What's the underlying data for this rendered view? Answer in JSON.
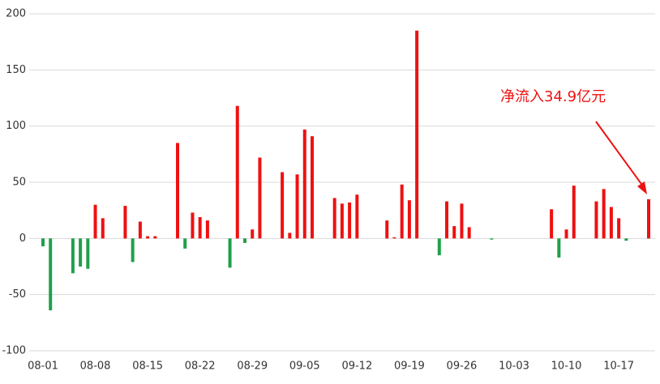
{
  "chart_data": {
    "type": "bar",
    "categories": [
      "08-01",
      null,
      null,
      null,
      null,
      null,
      null,
      "08-08",
      null,
      null,
      null,
      null,
      null,
      null,
      "08-15",
      null,
      null,
      null,
      null,
      null,
      null,
      "08-22",
      null,
      null,
      null,
      null,
      null,
      null,
      "08-29",
      null,
      null,
      null,
      null,
      null,
      null,
      "09-05",
      null,
      null,
      null,
      null,
      null,
      null,
      "09-12",
      null,
      null,
      null,
      null,
      null,
      null,
      "09-19",
      null,
      null,
      null,
      null,
      null,
      null,
      "09-26",
      null,
      null,
      null,
      null,
      null,
      null,
      "10-03",
      null,
      null,
      null,
      null,
      null,
      null,
      "10-10",
      null,
      null,
      null,
      null,
      null,
      null,
      "10-17",
      null,
      null,
      null,
      null
    ],
    "values": [
      -7,
      -64,
      null,
      null,
      -31,
      -25,
      -27,
      30,
      18,
      null,
      null,
      29,
      -21,
      15,
      2,
      2,
      null,
      null,
      85,
      -9,
      23,
      19,
      16,
      null,
      null,
      -26,
      118,
      -4,
      8,
      72,
      null,
      null,
      59,
      5,
      57,
      97,
      91,
      null,
      null,
      36,
      31,
      32,
      39,
      null,
      null,
      null,
      16,
      1,
      48,
      34,
      185,
      null,
      null,
      -15,
      33,
      11,
      31,
      10,
      null,
      null,
      -1,
      null,
      null,
      null,
      null,
      null,
      null,
      null,
      26,
      -17,
      8,
      47,
      null,
      null,
      33,
      44,
      28,
      18,
      -2,
      null,
      null,
      34.9
    ],
    "positive_color": "#ee1111",
    "negative_color": "#1fa04a",
    "ylim": [
      -100,
      200
    ],
    "yticks": [
      -100,
      -50,
      0,
      50,
      100,
      150,
      200
    ],
    "grid": true,
    "annotation": "净流入34.9亿元"
  }
}
